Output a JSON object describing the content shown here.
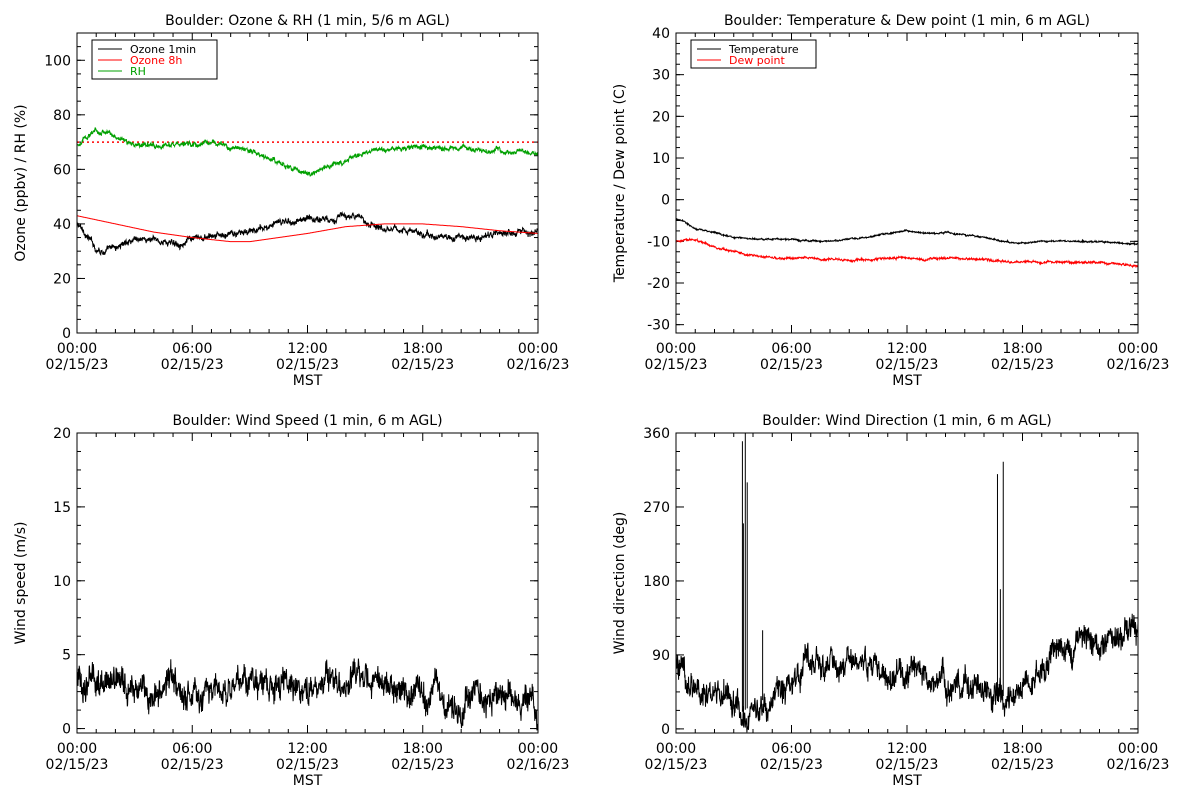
{
  "chart_data": [
    {
      "type": "line",
      "title": "Boulder: Ozone & RH (1 min, 5/6 m AGL)",
      "ylabel": "Ozone (ppbv) / RH (%)",
      "xlabel": "MST",
      "ylim": [
        0,
        110
      ],
      "yticks": [
        0,
        20,
        40,
        60,
        80,
        100
      ],
      "xticks": [
        {
          "time": "00:00",
          "date": "02/15/23"
        },
        {
          "time": "06:00",
          "date": "02/15/23"
        },
        {
          "time": "12:00",
          "date": "02/15/23"
        },
        {
          "time": "18:00",
          "date": "02/15/23"
        },
        {
          "time": "00:00",
          "date": "02/16/23"
        }
      ],
      "x_unit": "hour",
      "xlim": [
        0,
        24
      ],
      "legend": "top-left",
      "reference_line": {
        "y": 70,
        "color": "#ff0000",
        "style": "dotted"
      },
      "series": [
        {
          "name": "Ozone 1min",
          "color": "#000000",
          "noise": 1.6,
          "x": [
            0,
            0.5,
            1,
            1.5,
            2,
            2.5,
            3,
            4,
            5,
            6,
            7,
            8,
            9,
            10,
            11,
            12,
            13,
            14,
            15,
            16,
            17,
            18,
            19,
            20,
            21,
            22,
            23,
            24
          ],
          "y": [
            40,
            36,
            31,
            30,
            31,
            33,
            35,
            34,
            33,
            34,
            35,
            36,
            37,
            39,
            41,
            42,
            42,
            43,
            41,
            39,
            38,
            36,
            35,
            35,
            35,
            36,
            38,
            37
          ]
        },
        {
          "name": "Ozone 8h",
          "color": "#ff0000",
          "noise": 0,
          "x": [
            0,
            2,
            4,
            6,
            8,
            9,
            10,
            12,
            14,
            16,
            18,
            20,
            22,
            24
          ],
          "y": [
            43,
            40,
            37,
            35,
            33.5,
            33.5,
            34.5,
            36.5,
            39,
            40,
            40,
            39,
            37.5,
            36.5
          ]
        },
        {
          "name": "RH",
          "color": "#00a000",
          "noise": 1.2,
          "x": [
            0,
            0.5,
            1,
            1.5,
            2,
            2.5,
            3,
            4,
            5,
            6,
            7,
            8,
            9,
            10,
            11,
            12,
            13,
            14,
            15,
            16,
            17,
            18,
            19,
            20,
            21,
            22,
            23,
            24
          ],
          "y": [
            69,
            72,
            74,
            74,
            72,
            71,
            69,
            69,
            69,
            69,
            70,
            68,
            67,
            64,
            61,
            58,
            61,
            63,
            66,
            67,
            68,
            68,
            68,
            68,
            67,
            67,
            67,
            66
          ]
        }
      ]
    },
    {
      "type": "line",
      "title": "Boulder: Temperature & Dew point (1 min, 6 m AGL)",
      "ylabel": "Temperature / Dew point (C)",
      "xlabel": "MST",
      "ylim": [
        -32,
        40
      ],
      "yticks": [
        -30,
        -20,
        -10,
        0,
        10,
        20,
        30,
        40
      ],
      "xticks": [
        {
          "time": "00:00",
          "date": "02/15/23"
        },
        {
          "time": "06:00",
          "date": "02/15/23"
        },
        {
          "time": "12:00",
          "date": "02/15/23"
        },
        {
          "time": "18:00",
          "date": "02/15/23"
        },
        {
          "time": "00:00",
          "date": "02/16/23"
        }
      ],
      "x_unit": "hour",
      "xlim": [
        0,
        24
      ],
      "legend": "top-left",
      "series": [
        {
          "name": "Temperature",
          "color": "#000000",
          "noise": 0.25,
          "x": [
            0,
            0.5,
            1,
            2,
            3,
            4,
            5,
            6,
            7,
            8,
            9,
            10,
            11,
            12,
            13,
            14,
            15,
            16,
            17,
            18,
            19,
            20,
            21,
            22,
            23,
            24
          ],
          "y": [
            -4.5,
            -5.5,
            -7,
            -8,
            -9,
            -9.5,
            -9.5,
            -9.5,
            -10,
            -10,
            -9.5,
            -9,
            -8,
            -7.5,
            -8,
            -8,
            -8.5,
            -9,
            -10,
            -10.5,
            -10,
            -10,
            -10,
            -10,
            -10.5,
            -10.5
          ]
        },
        {
          "name": "Dew point",
          "color": "#ff0000",
          "noise": 0.35,
          "x": [
            0,
            0.5,
            1,
            2,
            3,
            4,
            5,
            6,
            7,
            8,
            9,
            10,
            11,
            12,
            13,
            14,
            15,
            16,
            17,
            18,
            19,
            20,
            21,
            22,
            23,
            24
          ],
          "y": [
            -10,
            -9.5,
            -9.5,
            -11.5,
            -12.5,
            -13.5,
            -14,
            -14,
            -14,
            -14.5,
            -14.5,
            -14.5,
            -14,
            -14,
            -14.5,
            -14,
            -14,
            -14.5,
            -15,
            -15,
            -15,
            -15,
            -15,
            -15,
            -15.5,
            -16
          ]
        }
      ]
    },
    {
      "type": "line",
      "title": "Boulder: Wind Speed (1 min, 6 m AGL)",
      "ylabel": "Wind speed (m/s)",
      "xlabel": "MST",
      "ylim": [
        -0.3,
        20
      ],
      "yticks": [
        0,
        5,
        10,
        15,
        20
      ],
      "xticks": [
        {
          "time": "00:00",
          "date": "02/15/23"
        },
        {
          "time": "06:00",
          "date": "02/15/23"
        },
        {
          "time": "12:00",
          "date": "02/15/23"
        },
        {
          "time": "18:00",
          "date": "02/15/23"
        },
        {
          "time": "00:00",
          "date": "02/16/23"
        }
      ],
      "x_unit": "hour",
      "xlim": [
        0,
        24
      ],
      "series": [
        {
          "name": "",
          "color": "#000000",
          "noise": 1.3,
          "x": [
            0,
            1,
            2,
            3,
            4,
            5,
            6,
            7,
            8,
            9,
            10,
            11,
            12,
            13,
            14,
            15,
            16,
            17,
            18,
            19,
            20,
            21,
            22,
            23,
            24
          ],
          "y": [
            3,
            3.5,
            3,
            3,
            2,
            2.5,
            2.5,
            2.5,
            2.5,
            3,
            2.8,
            3,
            2.8,
            3,
            3,
            3,
            2.8,
            2.5,
            2,
            2,
            2,
            2,
            2,
            2,
            1.5
          ]
        }
      ]
    },
    {
      "type": "line",
      "title": "Boulder: Wind Direction (1 min, 6 m AGL)",
      "ylabel": "Wind direction (deg)",
      "xlabel": "MST",
      "ylim": [
        -5,
        360
      ],
      "yticks": [
        0,
        90,
        180,
        270,
        360
      ],
      "xticks": [
        {
          "time": "00:00",
          "date": "02/15/23"
        },
        {
          "time": "06:00",
          "date": "02/15/23"
        },
        {
          "time": "12:00",
          "date": "02/15/23"
        },
        {
          "time": "18:00",
          "date": "02/15/23"
        },
        {
          "time": "00:00",
          "date": "02/16/23"
        }
      ],
      "x_unit": "hour",
      "xlim": [
        0,
        24
      ],
      "series": [
        {
          "name": "",
          "color": "#000000",
          "noise": 22,
          "x": [
            0,
            1,
            2,
            3,
            3.4,
            4,
            4.5,
            5,
            6,
            7,
            8,
            9,
            10,
            11,
            12,
            13,
            14,
            15,
            16,
            17,
            18,
            19,
            20,
            21,
            22,
            23,
            24
          ],
          "y": [
            80,
            50,
            35,
            30,
            20,
            30,
            35,
            40,
            60,
            80,
            80,
            85,
            75,
            70,
            65,
            60,
            55,
            55,
            50,
            40,
            45,
            70,
            95,
            100,
            105,
            110,
            120
          ]
        }
      ],
      "spikes": [
        {
          "x": 3.45,
          "y": 350
        },
        {
          "x": 3.5,
          "y": 250
        },
        {
          "x": 3.6,
          "y": 360
        },
        {
          "x": 3.7,
          "y": 300
        },
        {
          "x": 4.5,
          "y": 120
        },
        {
          "x": 16.7,
          "y": 310
        },
        {
          "x": 16.85,
          "y": 170
        },
        {
          "x": 17.0,
          "y": 325
        }
      ]
    }
  ]
}
